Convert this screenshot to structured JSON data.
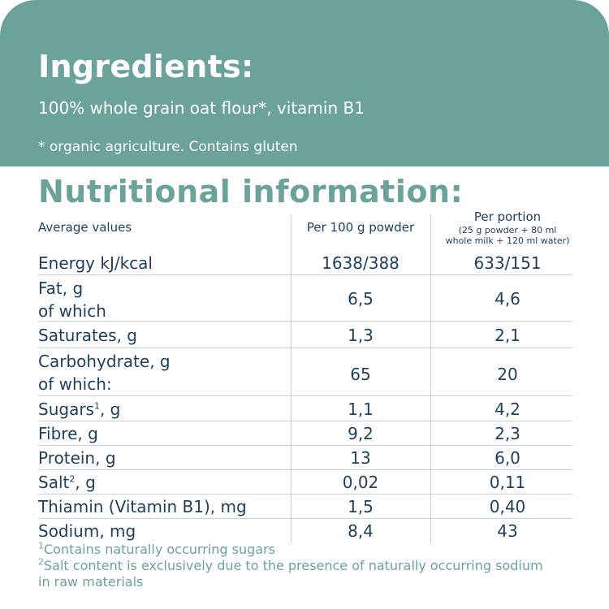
{
  "ingredients": {
    "title": "Ingredients:",
    "text": "100% whole grain oat flour*, vitamin B1",
    "note": "* organic agriculture.  Contains gluten"
  },
  "nutrition": {
    "title": "Nutritional information:",
    "col_label": "Average values",
    "col_per100": "Per 100 g powder",
    "col_portion": "Per portion",
    "col_portion_detail_1": "(25 g powder + 80 ml",
    "col_portion_detail_2": "whole milk + 120 ml water)",
    "rows": [
      {
        "label": "Energy kJ/kcal",
        "per100": "1638/388",
        "portion": "633/151"
      },
      {
        "label": "Fat, g",
        "label2": "of which",
        "per100": "6,5",
        "portion": "4,6"
      },
      {
        "label": "Saturates, g",
        "per100": "1,3",
        "portion": "2,1"
      },
      {
        "label": "Carbohydrate, g",
        "label2": "of which:",
        "per100": "65",
        "portion": "20"
      },
      {
        "label": "Sugars",
        "sup": "1",
        "label_suffix": ", g",
        "per100": "1,1",
        "portion": "4,2"
      },
      {
        "label": "Fibre, g",
        "per100": "9,2",
        "portion": "2,3"
      },
      {
        "label": "Protein, g",
        "per100": "13",
        "portion": "6,0"
      },
      {
        "label": "Salt",
        "sup": "2",
        "label_suffix": ", g",
        "per100": "0,02",
        "portion": "0,11"
      },
      {
        "label": "Thiamin (Vitamin B1), mg",
        "per100": "1,5",
        "portion": "0,40"
      },
      {
        "label": "Sodium, mg",
        "per100": "8,4",
        "portion": "43"
      }
    ],
    "footnote1_sup": "1",
    "footnote1": "Contains naturally occurring sugars",
    "footnote2_sup": "2",
    "footnote2_line1": "Salt content is exclusively due to the presence of naturally occurring sodium",
    "footnote2_line2": "in raw materials"
  },
  "colors": {
    "accent": "#6ba39b",
    "text": "#1f3f5e",
    "rule": "#c9d2d8"
  }
}
